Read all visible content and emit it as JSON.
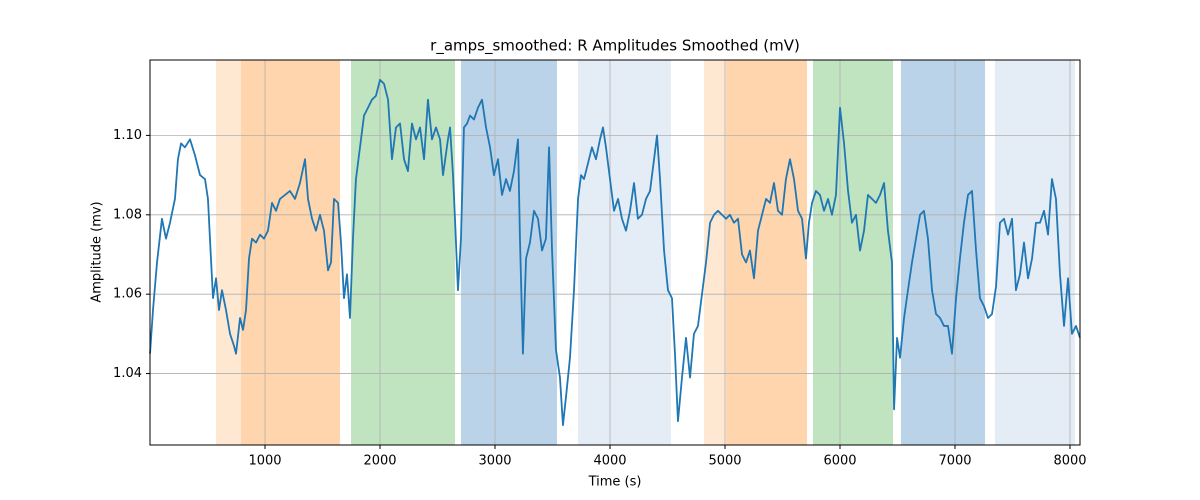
{
  "chart_data": {
    "type": "line",
    "title": "r_amps_smoothed: R Amplitudes Smoothed (mV)",
    "xlabel": "Time (s)",
    "ylabel": "Amplitude (mv)",
    "xlim": [
      0,
      8087
    ],
    "ylim": [
      1.022,
      1.119
    ],
    "xticks": [
      1000,
      2000,
      3000,
      4000,
      5000,
      6000,
      7000,
      8000
    ],
    "yticks": [
      1.04,
      1.06,
      1.08,
      {
        "value": 1.1,
        "label": "1.10"
      }
    ],
    "grid": true,
    "color": "#1f77b4",
    "spans": [
      {
        "start": 574,
        "end": 791,
        "color": "#ffe8d2"
      },
      {
        "start": 791,
        "end": 1652,
        "color": "#ffd5ad"
      },
      {
        "start": 1748,
        "end": 2652,
        "color": "#c0e3c0"
      },
      {
        "start": 2704,
        "end": 3539,
        "color": "#bad3e8"
      },
      {
        "start": 3722,
        "end": 4530,
        "color": "#e4ecf6"
      },
      {
        "start": 4817,
        "end": 5009,
        "color": "#ffe8d2"
      },
      {
        "start": 5009,
        "end": 5713,
        "color": "#ffd5ad"
      },
      {
        "start": 5765,
        "end": 6461,
        "color": "#c0e3c0"
      },
      {
        "start": 6530,
        "end": 7261,
        "color": "#bad3e8"
      },
      {
        "start": 7348,
        "end": 8043,
        "color": "#e4ecf6"
      }
    ],
    "x": [
      0,
      26,
      61,
      104,
      139,
      174,
      217,
      243,
      270,
      304,
      348,
      391,
      435,
      478,
      504,
      530,
      548,
      574,
      600,
      626,
      661,
      696,
      730,
      748,
      783,
      809,
      835,
      861,
      887,
      922,
      957,
      991,
      1026,
      1061,
      1096,
      1130,
      1174,
      1217,
      1261,
      1304,
      1348,
      1374,
      1409,
      1443,
      1478,
      1513,
      1548,
      1574,
      1600,
      1635,
      1661,
      1687,
      1713,
      1739,
      1765,
      1791,
      1826,
      1861,
      1896,
      1930,
      1965,
      2000,
      2035,
      2070,
      2104,
      2139,
      2174,
      2209,
      2243,
      2278,
      2313,
      2348,
      2383,
      2417,
      2452,
      2487,
      2522,
      2548,
      2591,
      2609,
      2635,
      2652,
      2678,
      2704,
      2730,
      2757,
      2783,
      2817,
      2852,
      2887,
      2922,
      2957,
      2991,
      3026,
      3061,
      3096,
      3130,
      3165,
      3200,
      3217,
      3243,
      3270,
      3304,
      3339,
      3374,
      3409,
      3443,
      3470,
      3496,
      3530,
      3565,
      3591,
      3617,
      3652,
      3687,
      3722,
      3748,
      3774,
      3809,
      3843,
      3878,
      3913,
      3939,
      3965,
      4000,
      4035,
      4070,
      4104,
      4139,
      4174,
      4209,
      4243,
      4278,
      4313,
      4348,
      4383,
      4409,
      4435,
      4470,
      4504,
      4539,
      4565,
      4591,
      4626,
      4661,
      4696,
      4730,
      4765,
      4800,
      4835,
      4870,
      4904,
      4939,
      4974,
      5009,
      5043,
      5078,
      5113,
      5148,
      5183,
      5217,
      5252,
      5287,
      5322,
      5357,
      5391,
      5426,
      5461,
      5496,
      5530,
      5565,
      5600,
      5635,
      5670,
      5704,
      5730,
      5757,
      5791,
      5826,
      5861,
      5896,
      5930,
      5965,
      6000,
      6035,
      6070,
      6104,
      6139,
      6174,
      6209,
      6243,
      6278,
      6313,
      6348,
      6383,
      6417,
      6452,
      6470,
      6496,
      6522,
      6557,
      6591,
      6626,
      6661,
      6696,
      6730,
      6765,
      6800,
      6835,
      6870,
      6904,
      6939,
      6974,
      7009,
      7043,
      7078,
      7113,
      7148,
      7183,
      7217,
      7252,
      7287,
      7322,
      7357,
      7391,
      7426,
      7461,
      7496,
      7530,
      7565,
      7600,
      7635,
      7670,
      7704,
      7739,
      7774,
      7809,
      7843,
      7878,
      7913,
      7948,
      7983,
      8017,
      8052,
      8087
    ],
    "values": [
      1.045,
      1.056,
      1.068,
      1.079,
      1.074,
      1.078,
      1.084,
      1.094,
      1.098,
      1.097,
      1.099,
      1.095,
      1.09,
      1.089,
      1.084,
      1.069,
      1.059,
      1.064,
      1.056,
      1.061,
      1.056,
      1.05,
      1.047,
      1.045,
      1.054,
      1.051,
      1.056,
      1.069,
      1.074,
      1.073,
      1.075,
      1.074,
      1.076,
      1.083,
      1.081,
      1.084,
      1.085,
      1.086,
      1.084,
      1.088,
      1.094,
      1.084,
      1.079,
      1.076,
      1.08,
      1.076,
      1.066,
      1.068,
      1.084,
      1.083,
      1.073,
      1.059,
      1.065,
      1.054,
      1.074,
      1.089,
      1.097,
      1.105,
      1.107,
      1.109,
      1.11,
      1.114,
      1.113,
      1.109,
      1.094,
      1.102,
      1.103,
      1.094,
      1.091,
      1.103,
      1.099,
      1.102,
      1.094,
      1.109,
      1.099,
      1.102,
      1.099,
      1.09,
      1.099,
      1.102,
      1.09,
      1.079,
      1.061,
      1.074,
      1.102,
      1.103,
      1.105,
      1.104,
      1.107,
      1.109,
      1.102,
      1.097,
      1.09,
      1.094,
      1.085,
      1.089,
      1.086,
      1.091,
      1.099,
      1.074,
      1.045,
      1.069,
      1.073,
      1.081,
      1.079,
      1.071,
      1.074,
      1.097,
      1.071,
      1.046,
      1.039,
      1.027,
      1.034,
      1.044,
      1.061,
      1.084,
      1.09,
      1.089,
      1.093,
      1.097,
      1.094,
      1.099,
      1.102,
      1.097,
      1.089,
      1.081,
      1.084,
      1.079,
      1.076,
      1.081,
      1.088,
      1.079,
      1.08,
      1.084,
      1.086,
      1.094,
      1.1,
      1.089,
      1.071,
      1.061,
      1.059,
      1.045,
      1.028,
      1.039,
      1.049,
      1.039,
      1.05,
      1.052,
      1.06,
      1.068,
      1.078,
      1.08,
      1.081,
      1.08,
      1.079,
      1.08,
      1.078,
      1.079,
      1.07,
      1.068,
      1.071,
      1.064,
      1.076,
      1.08,
      1.084,
      1.083,
      1.088,
      1.081,
      1.08,
      1.089,
      1.094,
      1.089,
      1.081,
      1.079,
      1.069,
      1.078,
      1.083,
      1.086,
      1.085,
      1.081,
      1.084,
      1.08,
      1.085,
      1.107,
      1.098,
      1.086,
      1.078,
      1.08,
      1.071,
      1.076,
      1.085,
      1.084,
      1.083,
      1.085,
      1.088,
      1.076,
      1.068,
      1.031,
      1.049,
      1.044,
      1.054,
      1.061,
      1.068,
      1.074,
      1.08,
      1.081,
      1.074,
      1.061,
      1.055,
      1.054,
      1.052,
      1.052,
      1.045,
      1.059,
      1.069,
      1.078,
      1.085,
      1.086,
      1.071,
      1.059,
      1.057,
      1.054,
      1.055,
      1.062,
      1.078,
      1.079,
      1.075,
      1.079,
      1.061,
      1.065,
      1.073,
      1.064,
      1.069,
      1.078,
      1.078,
      1.081,
      1.075,
      1.089,
      1.084,
      1.065,
      1.052,
      1.064,
      1.05,
      1.052,
      1.049
    ]
  }
}
